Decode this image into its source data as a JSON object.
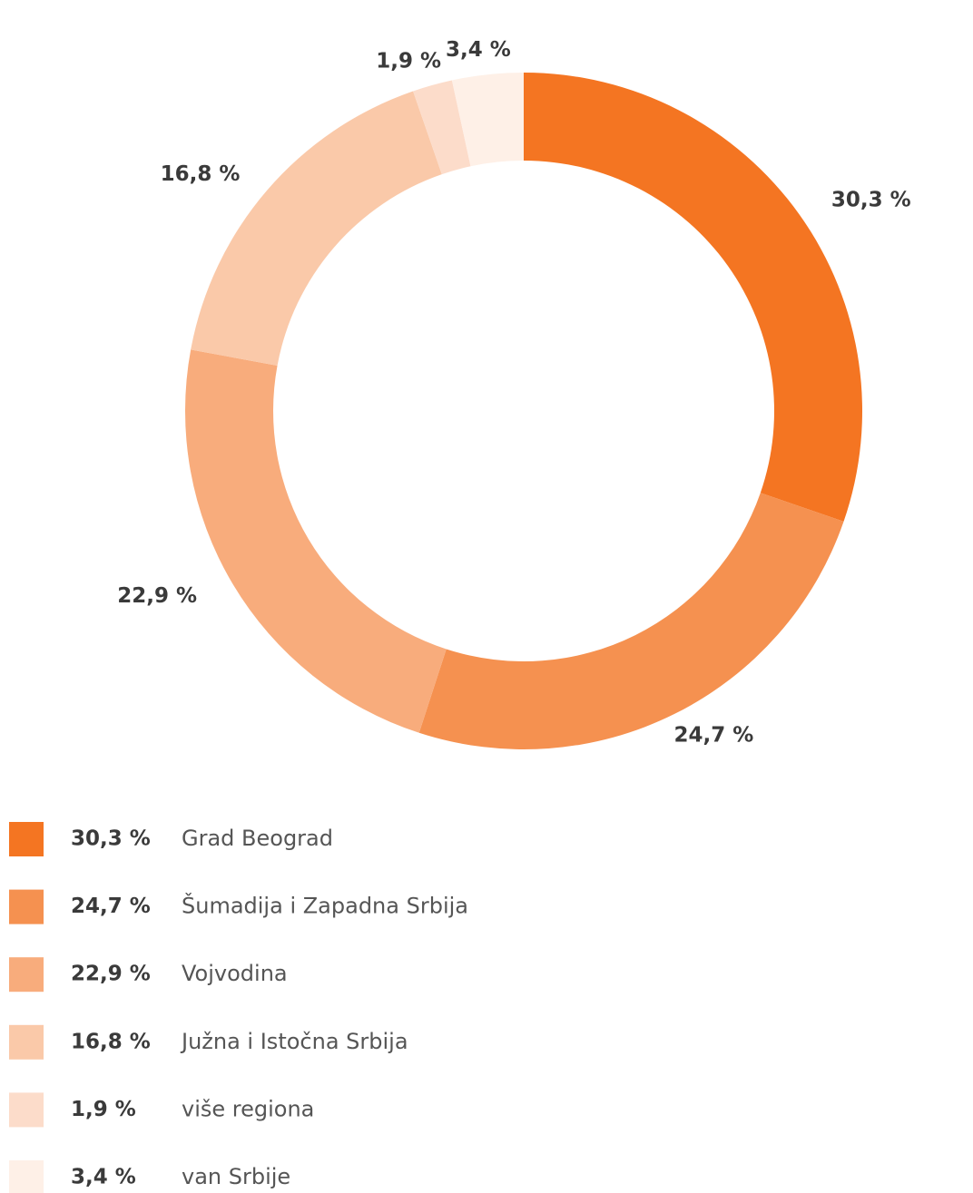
{
  "chart_data": {
    "type": "donut",
    "categories": [
      "Grad Beograd",
      "Šumadija i Zapadna Srbija",
      "Vojvodina",
      "Južna i Istočna Srbija",
      "više regiona",
      "van Srbije"
    ],
    "values": [
      30.3,
      24.7,
      22.9,
      16.8,
      1.9,
      3.4
    ],
    "value_labels": [
      "30,3 %",
      "24,7 %",
      "22,9 %",
      "16,8 %",
      "1,9 %",
      "3,4 %"
    ],
    "colors": [
      "#f47522",
      "#f59150",
      "#f8ac7c",
      "#fac9a9",
      "#fcdcca",
      "#fef0e7"
    ]
  }
}
